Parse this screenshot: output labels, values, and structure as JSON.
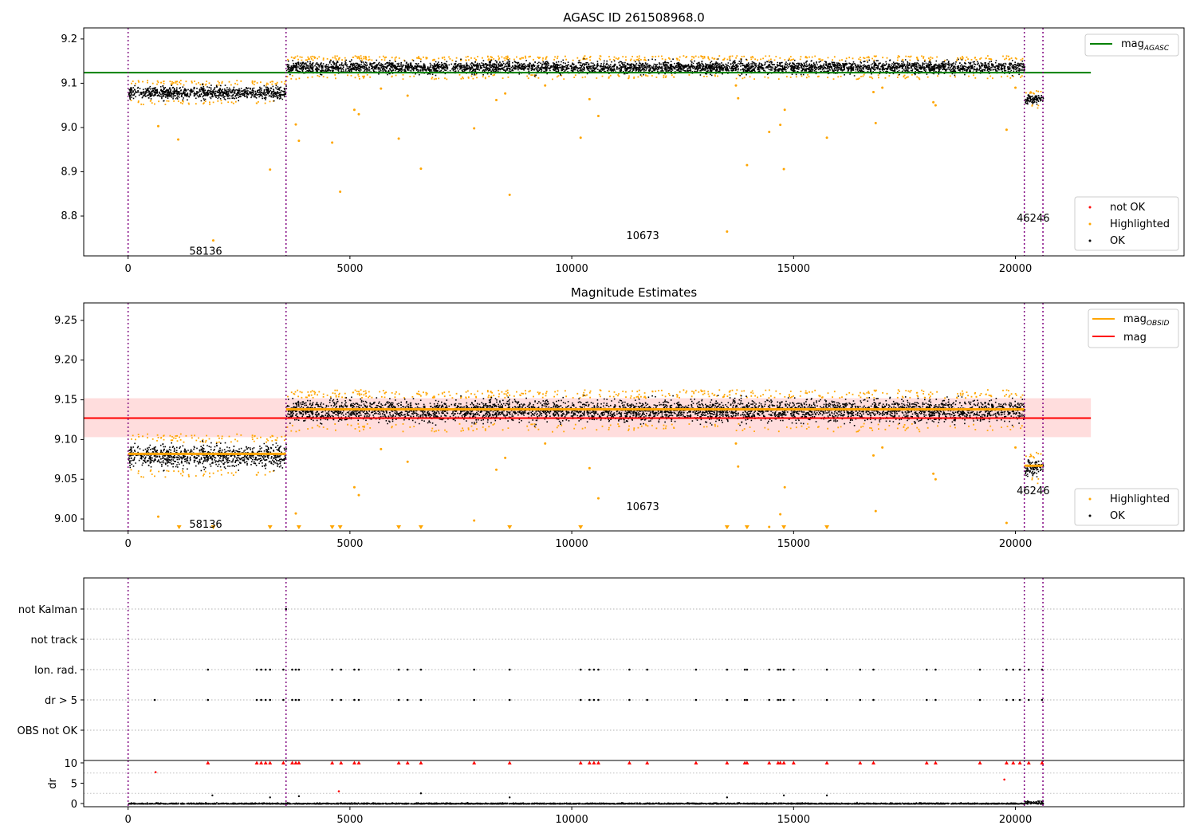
{
  "chart_data": [
    {
      "type": "scatter",
      "title": "AGASC ID 261508968.0",
      "xlim": [
        -1000,
        23800
      ],
      "ylim": [
        8.71,
        9.225
      ],
      "xticks": [
        0,
        5000,
        10000,
        15000,
        20000
      ],
      "yticks": [
        8.8,
        8.9,
        9.0,
        9.1,
        9.2
      ],
      "grid": false,
      "obsid_boundaries": [
        0,
        3560,
        20200,
        20620
      ],
      "obsid_labels": [
        {
          "text": "58136",
          "x": 1750,
          "y": 8.72
        },
        {
          "text": "10673",
          "x": 11600,
          "y": 8.755
        },
        {
          "text": "46246",
          "x": 20400,
          "y": 8.795
        }
      ],
      "clusters": [
        {
          "x": [
            0,
            3560
          ],
          "y_center": 9.08,
          "y_spread": 0.018
        },
        {
          "x": [
            3560,
            20200
          ],
          "y_center": 9.137,
          "y_spread": 0.017
        },
        {
          "x": [
            20200,
            20620
          ],
          "y_center": 9.065,
          "y_spread": 0.013
        }
      ],
      "highlighted_outliers": [
        {
          "x": 680,
          "y": 9.003
        },
        {
          "x": 1130,
          "y": 8.973
        },
        {
          "x": 1920,
          "y": 8.745
        },
        {
          "x": 3200,
          "y": 8.905
        },
        {
          "x": 3780,
          "y": 9.007
        },
        {
          "x": 3850,
          "y": 8.97
        },
        {
          "x": 4600,
          "y": 8.966
        },
        {
          "x": 4780,
          "y": 8.855
        },
        {
          "x": 5100,
          "y": 9.04
        },
        {
          "x": 5200,
          "y": 9.03
        },
        {
          "x": 5700,
          "y": 9.088
        },
        {
          "x": 6100,
          "y": 8.975
        },
        {
          "x": 6300,
          "y": 9.072
        },
        {
          "x": 6600,
          "y": 8.907
        },
        {
          "x": 7800,
          "y": 8.998
        },
        {
          "x": 8300,
          "y": 9.062
        },
        {
          "x": 8500,
          "y": 9.077
        },
        {
          "x": 8600,
          "y": 8.848
        },
        {
          "x": 9400,
          "y": 9.095
        },
        {
          "x": 10200,
          "y": 8.977
        },
        {
          "x": 10400,
          "y": 9.064
        },
        {
          "x": 10600,
          "y": 9.026
        },
        {
          "x": 13500,
          "y": 8.765
        },
        {
          "x": 13700,
          "y": 9.095
        },
        {
          "x": 13750,
          "y": 9.066
        },
        {
          "x": 13950,
          "y": 8.915
        },
        {
          "x": 14450,
          "y": 8.99
        },
        {
          "x": 14700,
          "y": 9.006
        },
        {
          "x": 14780,
          "y": 8.906
        },
        {
          "x": 14800,
          "y": 9.04
        },
        {
          "x": 15750,
          "y": 8.977
        },
        {
          "x": 16800,
          "y": 9.08
        },
        {
          "x": 16850,
          "y": 9.01
        },
        {
          "x": 17000,
          "y": 9.09
        },
        {
          "x": 18150,
          "y": 9.057
        },
        {
          "x": 18200,
          "y": 9.05
        },
        {
          "x": 19800,
          "y": 8.995
        },
        {
          "x": 20000,
          "y": 9.09
        }
      ],
      "lines": [
        {
          "name": "mag_AGASC",
          "color": "#008000",
          "y": 9.124,
          "x": [
            -1000,
            21700
          ]
        }
      ],
      "legend": {
        "entries": [
          "not OK",
          "Highlighted",
          "OK"
        ],
        "position": "lower-right"
      },
      "series_colors": {
        "not OK": "#ff0000",
        "Highlighted": "#ffa500",
        "OK": "#000000"
      }
    },
    {
      "type": "scatter",
      "title": "Magnitude Estimates",
      "xlim": [
        -1000,
        23800
      ],
      "ylim": [
        8.985,
        9.272
      ],
      "xticks": [
        0,
        5000,
        10000,
        15000,
        20000
      ],
      "yticks": [
        9.0,
        9.05,
        9.1,
        9.15,
        9.2,
        9.25
      ],
      "grid": false,
      "obsid_boundaries": [
        0,
        3560,
        20200,
        20620
      ],
      "obsid_labels": [
        {
          "text": "58136",
          "x": 1750,
          "y": 8.993
        },
        {
          "text": "10673",
          "x": 11600,
          "y": 9.015
        },
        {
          "text": "46246",
          "x": 20400,
          "y": 9.035
        }
      ],
      "mag_band": {
        "y_low": 9.103,
        "y_high": 9.152,
        "x": [
          -1000,
          21700
        ],
        "color": "#ffdddd"
      },
      "lines": [
        {
          "name": "mag",
          "color": "#ff0000",
          "y": 9.127,
          "x": [
            -1000,
            21700
          ]
        }
      ],
      "obsid_mags": [
        {
          "x": [
            0,
            3560
          ],
          "y": 9.082
        },
        {
          "x": [
            3560,
            20200
          ],
          "y": 9.138
        },
        {
          "x": [
            20200,
            20620
          ],
          "y": 9.067
        }
      ],
      "clusters": [
        {
          "x": [
            0,
            3560
          ],
          "y_center": 9.08,
          "y_spread": 0.018
        },
        {
          "x": [
            3560,
            20200
          ],
          "y_center": 9.137,
          "y_spread": 0.017
        },
        {
          "x": [
            20200,
            20620
          ],
          "y_center": 9.065,
          "y_spread": 0.013
        }
      ],
      "clipped_markers_x": [
        1150,
        1920,
        3200,
        3850,
        4600,
        4780,
        6100,
        6600,
        8600,
        10200,
        13500,
        13950,
        14780,
        15750
      ],
      "legend": {
        "entries": [
          "mag_OBSID",
          "mag"
        ],
        "position": "upper-right"
      },
      "legend2": {
        "entries": [
          "Highlighted",
          "OK"
        ],
        "position": "lower-right"
      }
    },
    {
      "type": "scatter",
      "title": "",
      "xlim": [
        -1000,
        23800
      ],
      "categories": [
        "not Kalman",
        "not track",
        "Ion. rad.",
        "dr > 5",
        "OBS not OK"
      ],
      "flag_points": {
        "not Kalman": [
          3560
        ],
        "Ion. rad.": [
          1800,
          2900,
          3000,
          3100,
          3200,
          3500,
          3700,
          3780,
          3850,
          4600,
          4800,
          5100,
          5200,
          6100,
          6300,
          6600,
          7800,
          8600,
          10200,
          10400,
          10500,
          10600,
          11300,
          11700,
          12800,
          13500,
          13900,
          13950,
          14450,
          14650,
          14700,
          14780,
          15000,
          15750,
          16500,
          16800,
          18000,
          18200,
          19200,
          19800,
          19950,
          20100,
          20300,
          20600
        ],
        "dr > 5": [
          600,
          1800,
          2900,
          3000,
          3100,
          3200,
          3500,
          3700,
          3780,
          3850,
          4600,
          4800,
          5100,
          5200,
          6100,
          6300,
          6600,
          7800,
          8600,
          10200,
          10400,
          10500,
          10600,
          11300,
          11700,
          12800,
          13500,
          13900,
          13950,
          14450,
          14650,
          14700,
          14780,
          15000,
          15750,
          16500,
          16800,
          18000,
          18200,
          19200,
          19800,
          19950,
          20100,
          20300,
          20600
        ]
      }
    },
    {
      "type": "scatter",
      "title": "",
      "ylabel": "dr",
      "xlim": [
        -1000,
        23800
      ],
      "ylim": [
        0,
        10
      ],
      "xticks": [
        0,
        5000,
        10000,
        15000,
        20000
      ],
      "yticks": [
        0,
        5,
        10
      ],
      "capped_red_x": [
        1800,
        2900,
        3000,
        3100,
        3200,
        3500,
        3700,
        3780,
        3850,
        4600,
        4800,
        5100,
        5200,
        6100,
        6300,
        6600,
        7800,
        8600,
        10200,
        10400,
        10500,
        10600,
        11300,
        11700,
        12800,
        13500,
        13900,
        13950,
        14450,
        14650,
        14700,
        14780,
        15000,
        15750,
        16500,
        16800,
        18000,
        18200,
        19200,
        19800,
        19950,
        20100,
        20300,
        20600
      ],
      "red_points": [
        {
          "x": 620,
          "y": 7.7
        },
        {
          "x": 4750,
          "y": 3.0
        },
        {
          "x": 19750,
          "y": 5.9
        }
      ],
      "black_outliers": [
        {
          "x": 1900,
          "y": 2.0
        },
        {
          "x": 3200,
          "y": 1.5
        },
        {
          "x": 3850,
          "y": 1.8
        },
        {
          "x": 6600,
          "y": 2.5
        },
        {
          "x": 8600,
          "y": 1.5
        },
        {
          "x": 13500,
          "y": 1.5
        },
        {
          "x": 14780,
          "y": 2.0
        },
        {
          "x": 15750,
          "y": 2.0
        }
      ]
    }
  ],
  "legend_text": {
    "p1_line": "mag",
    "p1_line_sub": "AGASC",
    "p1_notok": "not OK",
    "p1_high": "Highlighted",
    "p1_ok": "OK",
    "p2_obsid": "mag",
    "p2_obsid_sub": "OBSID",
    "p2_mag": "mag",
    "p2_high": "Highlighted",
    "p2_ok": "OK"
  }
}
